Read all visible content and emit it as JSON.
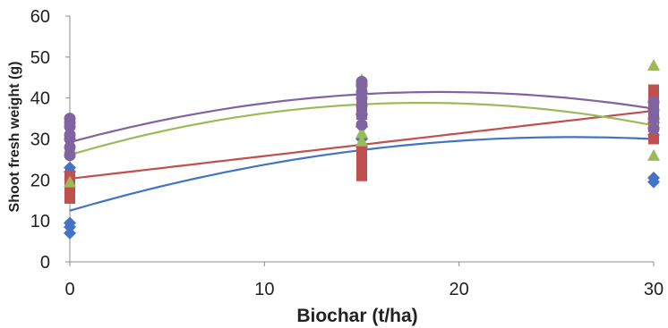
{
  "chart_data": {
    "type": "scatter",
    "title": "",
    "xlabel": "Biochar (t/ha)",
    "ylabel": "Shoot fresh weight (g)",
    "xlim": [
      0,
      30
    ],
    "ylim": [
      0,
      60
    ],
    "x_ticks": [
      "0",
      "10",
      "20",
      "30"
    ],
    "y_ticks": [
      "0",
      "10",
      "20",
      "30",
      "40",
      "50",
      "60"
    ],
    "grid": false,
    "legend": "none",
    "series": [
      {
        "color": "#4472C4",
        "marker": "diamond",
        "points": [
          [
            0,
            7
          ],
          [
            0,
            8.5
          ],
          [
            0,
            9.5
          ],
          [
            0,
            22
          ],
          [
            0,
            23
          ],
          [
            15,
            28
          ],
          [
            15,
            30
          ],
          [
            15,
            33
          ],
          [
            15,
            36
          ],
          [
            30,
            19.5
          ],
          [
            30,
            20.5
          ],
          [
            30,
            31
          ],
          [
            30,
            34
          ]
        ],
        "trend": [
          12.5,
          1.39,
          -0.0269
        ]
      },
      {
        "color": "#C0504D",
        "marker": "square",
        "points": [
          [
            0,
            15.5
          ],
          [
            0,
            17
          ],
          [
            0,
            19
          ],
          [
            0,
            21
          ],
          [
            15,
            21
          ],
          [
            15,
            22.5
          ],
          [
            15,
            24
          ],
          [
            15,
            25.5
          ],
          [
            15,
            27
          ],
          [
            15,
            36
          ],
          [
            15,
            38
          ],
          [
            30,
            30
          ],
          [
            30,
            33
          ],
          [
            30,
            36
          ],
          [
            30,
            38
          ],
          [
            30,
            40
          ],
          [
            30,
            42
          ]
        ],
        "trend": [
          20.3,
          0.553,
          0
        ]
      },
      {
        "color": "#9BBB59",
        "marker": "triangle",
        "points": [
          [
            0,
            19.5
          ],
          [
            0,
            28
          ],
          [
            15,
            29.5
          ],
          [
            15,
            31.5
          ],
          [
            15,
            44.5
          ],
          [
            30,
            26
          ],
          [
            30,
            34
          ],
          [
            30,
            48
          ]
        ],
        "trend": [
          26.1,
          1.407,
          -0.0389
        ]
      },
      {
        "color": "#8064A2",
        "marker": "circle",
        "points": [
          [
            0,
            26
          ],
          [
            0,
            28
          ],
          [
            0,
            30
          ],
          [
            0,
            31
          ],
          [
            0,
            33
          ],
          [
            0,
            34
          ],
          [
            0,
            35
          ],
          [
            15,
            33.5
          ],
          [
            15,
            36
          ],
          [
            15,
            38
          ],
          [
            15,
            40
          ],
          [
            15,
            41.5
          ],
          [
            15,
            43
          ],
          [
            15,
            44
          ],
          [
            30,
            32.5
          ],
          [
            30,
            35
          ],
          [
            30,
            37
          ],
          [
            30,
            39
          ]
        ],
        "trend": [
          29.2,
          1.29,
          -0.0339
        ]
      }
    ]
  }
}
